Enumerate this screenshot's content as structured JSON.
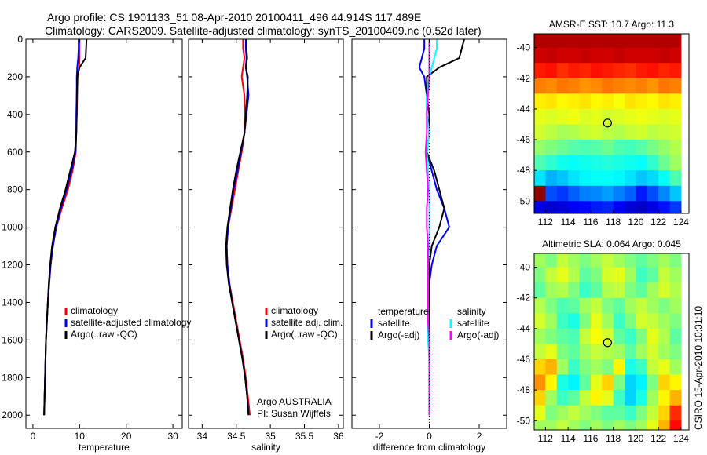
{
  "title_line1": "Argo profile: CS 1901133_51 08-Apr-2010 20100411_496 44.914S 117.489E",
  "title_line2": "Climatology: CARS2009. Satellite-adjusted climatology: synTS_20100409.nc (0.52d later)",
  "side_label": "CSIRO 15-Apr-2010 10:31:10",
  "chart_data": [
    {
      "type": "line",
      "id": "temp",
      "xlabel": "temperature",
      "xlim": [
        -1.5,
        32
      ],
      "ylim": [
        0,
        2070
      ],
      "yreversed": true,
      "xticks": [
        0,
        10,
        20,
        30
      ],
      "yticks": [
        0,
        200,
        400,
        600,
        800,
        1000,
        1200,
        1400,
        1600,
        1800,
        2000
      ],
      "depth": [
        0,
        50,
        100,
        150,
        200,
        300,
        400,
        500,
        600,
        700,
        800,
        900,
        1000,
        1100,
        1200,
        1300,
        1400,
        1500,
        1600,
        1700,
        1800,
        1900,
        2000
      ],
      "series": [
        {
          "name": "climatology",
          "color": "#ff0000",
          "values": [
            10,
            10,
            10,
            9.9,
            9.6,
            9.5,
            9.4,
            9.3,
            9.2,
            8.5,
            7.5,
            6.2,
            5.0,
            4.3,
            3.8,
            3.5,
            3.2,
            3.0,
            2.8,
            2.7,
            2.6,
            2.5,
            2.4
          ]
        },
        {
          "name": "satellite-adjusted climatology",
          "color": "#0000ff",
          "values": [
            9.8,
            9.8,
            9.7,
            9.5,
            9.4,
            9.4,
            9.3,
            9.3,
            9.1,
            8.3,
            7.2,
            6.0,
            5.0,
            4.3,
            3.8,
            3.5,
            3.2,
            3.0,
            2.8,
            2.7,
            2.6,
            2.5,
            2.4
          ]
        },
        {
          "name": "Argo(..raw -QC)",
          "color": "#000000",
          "values": [
            11.5,
            11.4,
            11.3,
            10.0,
            9.5,
            9.4,
            9.4,
            9.3,
            9.0,
            8.0,
            7.0,
            5.8,
            4.8,
            4.1,
            3.7,
            3.4,
            3.2,
            3.0,
            2.8,
            2.7,
            2.6,
            2.5,
            2.4
          ]
        }
      ],
      "legend": [
        "climatology",
        "satellite-adjusted climatology",
        "Argo(..raw -QC)"
      ]
    },
    {
      "type": "line",
      "id": "sal",
      "xlabel": "salinity",
      "xlim": [
        33.8,
        36.07
      ],
      "ylim": [
        0,
        2070
      ],
      "yreversed": true,
      "xticks": [
        34,
        34.5,
        35,
        35.5,
        36
      ],
      "depth": [
        0,
        50,
        100,
        150,
        200,
        300,
        400,
        500,
        600,
        700,
        800,
        900,
        1000,
        1100,
        1200,
        1300,
        1400,
        1500,
        1600,
        1700,
        1800,
        1900,
        2000
      ],
      "series": [
        {
          "name": "climatology",
          "color": "#ff0000",
          "values": [
            34.6,
            34.6,
            34.62,
            34.6,
            34.58,
            34.62,
            34.63,
            34.62,
            34.58,
            34.53,
            34.48,
            34.43,
            34.38,
            34.36,
            34.37,
            34.4,
            34.45,
            34.5,
            34.55,
            34.6,
            34.64,
            34.67,
            34.7
          ]
        },
        {
          "name": "satellite adj. clim.",
          "color": "#0000ff",
          "values": [
            34.64,
            34.64,
            34.65,
            34.64,
            34.66,
            34.68,
            34.65,
            34.62,
            34.57,
            34.52,
            34.46,
            34.42,
            34.38,
            34.36,
            34.37,
            34.4,
            34.44,
            34.49,
            34.54,
            34.59,
            34.63,
            34.66,
            34.68
          ]
        },
        {
          "name": "Argo(..raw -QC)",
          "color": "#000000",
          "values": [
            34.65,
            34.65,
            34.66,
            34.64,
            34.67,
            34.66,
            34.64,
            34.62,
            34.56,
            34.5,
            34.45,
            34.41,
            34.37,
            34.35,
            34.36,
            34.39,
            34.44,
            34.49,
            34.54,
            34.59,
            34.63,
            34.66,
            34.68
          ]
        }
      ],
      "legend": [
        "climatology",
        "satellite adj. clim.",
        "Argo(..raw -QC)"
      ],
      "annotation": [
        "Argo AUSTRALIA",
        "PI: Susan Wijffels"
      ]
    },
    {
      "type": "line",
      "id": "diff",
      "xlabel": "difference from climatology",
      "xlim": [
        -3.1,
        3.1
      ],
      "ylim": [
        0,
        2070
      ],
      "yreversed": true,
      "xticks": [
        -2,
        0,
        2
      ],
      "depth": [
        0,
        50,
        100,
        150,
        200,
        300,
        400,
        500,
        600,
        700,
        800,
        900,
        1000,
        1100,
        1200,
        1300,
        1400,
        1500,
        1600,
        1700,
        1800,
        1900,
        2000
      ],
      "series": [
        {
          "name": "temperature satellite",
          "color": "#0000ff",
          "values": [
            -0.2,
            -0.2,
            -0.3,
            -0.4,
            -0.2,
            -0.1,
            -0.1,
            0.0,
            -0.1,
            0.1,
            0.3,
            0.6,
            0.8,
            0.3,
            0.1,
            0.0,
            0.0,
            0.0,
            0.0,
            0.0,
            0.0,
            0.0,
            0.0
          ]
        },
        {
          "name": "temperature Argo(-adj)",
          "color": "#000000",
          "values": [
            1.4,
            1.3,
            1.2,
            0.4,
            -0.1,
            -0.1,
            0.0,
            0.0,
            -0.1,
            0.2,
            0.4,
            0.6,
            0.4,
            0.1,
            0.0,
            0.0,
            0.0,
            0.0,
            0.0,
            0.0,
            0.0,
            0.0,
            0.0
          ]
        },
        {
          "name": "salinity satellite",
          "color": "#00ffff",
          "values": [
            0.3,
            0.3,
            0.2,
            0.1,
            0.0,
            -0.1,
            -0.1,
            0.0,
            -0.1,
            -0.05,
            0.0,
            0.0,
            0.0,
            0.0,
            -0.05,
            -0.05,
            -0.05,
            -0.05,
            -0.05,
            0.0,
            0.0,
            0.0,
            0.0
          ]
        },
        {
          "name": "salinity Argo(-adj)",
          "color": "#ff00ff",
          "values": [
            0.0,
            0.0,
            0.0,
            0.0,
            0.0,
            -0.05,
            -0.1,
            -0.1,
            -0.15,
            -0.1,
            -0.05,
            -0.1,
            -0.1,
            -0.05,
            -0.05,
            -0.05,
            -0.05,
            -0.05,
            0.0,
            0.0,
            0.0,
            0.0,
            0.0
          ]
        }
      ],
      "legend_headers": [
        "temperature",
        "salinity"
      ],
      "legend": [
        "satellite",
        "Argo(-adj)",
        "satellite",
        "Argo(-adj)"
      ]
    },
    {
      "type": "heatmap",
      "id": "sst",
      "title": "AMSR-E SST: 10.7  Argo: 11.3",
      "xlim": [
        111,
        124.7
      ],
      "ylim": [
        -50.8,
        -39.1
      ],
      "xticks": [
        112,
        114,
        116,
        118,
        120,
        122,
        124
      ],
      "yticks": [
        -40,
        -42,
        -44,
        -46,
        -48,
        -50
      ],
      "clim": [
        6,
        16
      ],
      "marker": [
        117.489,
        -44.914
      ],
      "lat": [
        -39.5,
        -40.5,
        -41.5,
        -42.5,
        -43.5,
        -44.5,
        -45.5,
        -46.5,
        -47.5,
        -48.5,
        -49.5,
        -50.5
      ],
      "lon": [
        111.5,
        112.5,
        113.5,
        114.5,
        115.5,
        116.5,
        117.5,
        118.5,
        119.5,
        120.5,
        121.5,
        122.5,
        123.5
      ],
      "values": [
        [
          15.5,
          15.5,
          15.5,
          15.5,
          15.5,
          15.5,
          15.5,
          15.5,
          15.5,
          15.5,
          15.5,
          15.5,
          15.5
        ],
        [
          15.2,
          15.3,
          15.2,
          15.2,
          15.3,
          15.2,
          15.2,
          15.3,
          15.2,
          15.2,
          15.2,
          15.3,
          15.2
        ],
        [
          14.5,
          14.6,
          14.3,
          14.5,
          14.4,
          14.6,
          14.5,
          14.4,
          14.3,
          14.5,
          14.6,
          14.4,
          14.5
        ],
        [
          13.5,
          13.4,
          13.6,
          13.5,
          13.3,
          13.4,
          13.6,
          13.5,
          13.4,
          13.5,
          13.3,
          13.6,
          13.5
        ],
        [
          12.4,
          12.5,
          12.3,
          12.4,
          12.5,
          12.3,
          12.4,
          12.2,
          12.5,
          12.4,
          12.3,
          12.5,
          12.4
        ],
        [
          12.0,
          11.9,
          12.0,
          12.1,
          11.9,
          12.0,
          11.8,
          11.9,
          12.0,
          12.1,
          12.0,
          11.9,
          12.0
        ],
        [
          11.8,
          11.6,
          11.4,
          11.5,
          11.7,
          11.8,
          11.6,
          11.5,
          11.7,
          11.8,
          11.6,
          11.7,
          11.8
        ],
        [
          11.2,
          11.0,
          10.8,
          10.6,
          10.5,
          10.6,
          10.8,
          10.5,
          10.4,
          10.6,
          10.9,
          11.2,
          11.5
        ],
        [
          10.5,
          10.2,
          9.9,
          9.8,
          9.9,
          10.0,
          10.1,
          10.0,
          9.9,
          9.8,
          10.2,
          10.8,
          11.3
        ],
        [
          9.5,
          9.0,
          9.2,
          9.5,
          9.7,
          9.8,
          9.8,
          9.7,
          9.5,
          9.2,
          9.4,
          9.8,
          10.5
        ],
        [
          15.8,
          8.0,
          7.8,
          8.2,
          8.5,
          8.6,
          8.8,
          8.5,
          8.2,
          7.5,
          8.0,
          8.6,
          9.2
        ],
        [
          7.0,
          6.8,
          6.9,
          7.2,
          7.3,
          7.5,
          7.6,
          7.2,
          6.9,
          6.7,
          7.0,
          7.4,
          7.8
        ]
      ]
    },
    {
      "type": "heatmap",
      "id": "sla",
      "title": "Altimetric SLA: 0.064  Argo: 0.045",
      "xlim": [
        111,
        124.7
      ],
      "ylim": [
        -50.6,
        -39.1
      ],
      "xticks": [
        112,
        114,
        116,
        118,
        120,
        122,
        124
      ],
      "yticks": [
        -40,
        -42,
        -44,
        -46,
        -48,
        -50
      ],
      "clim": [
        -0.3,
        0.3
      ],
      "marker": [
        117.489,
        -44.914
      ],
      "lat": [
        -39.5,
        -40.5,
        -41.5,
        -42.5,
        -43.5,
        -44.5,
        -45.5,
        -46.5,
        -47.5,
        -48.5,
        -49.5,
        -50.5
      ],
      "lon": [
        111.5,
        112.5,
        113.5,
        114.5,
        115.5,
        116.5,
        117.5,
        118.5,
        119.5,
        120.5,
        121.5,
        122.5,
        123.5
      ],
      "values": [
        [
          0.02,
          0.0,
          0.04,
          0.02,
          0.0,
          0.02,
          0.04,
          0.02,
          0.0,
          -0.02,
          0.0,
          0.02,
          0.0
        ],
        [
          0.0,
          0.04,
          0.06,
          0.03,
          -0.02,
          0.0,
          0.05,
          0.06,
          0.02,
          -0.04,
          -0.02,
          0.04,
          0.02
        ],
        [
          -0.02,
          0.02,
          0.03,
          0.0,
          -0.04,
          -0.02,
          0.03,
          0.04,
          0.0,
          -0.02,
          0.02,
          0.05,
          0.03
        ],
        [
          0.03,
          0.0,
          -0.03,
          -0.02,
          0.02,
          0.04,
          0.0,
          -0.02,
          0.02,
          0.04,
          0.02,
          0.0,
          0.02
        ],
        [
          0.05,
          0.02,
          -0.04,
          -0.06,
          0.0,
          0.06,
          0.02,
          -0.04,
          0.0,
          0.05,
          0.04,
          0.02,
          0.0
        ],
        [
          0.02,
          0.0,
          -0.02,
          -0.03,
          0.04,
          0.07,
          0.05,
          -0.02,
          -0.04,
          0.0,
          0.06,
          0.03,
          -0.02
        ],
        [
          0.04,
          0.06,
          0.0,
          -0.02,
          0.02,
          0.04,
          0.03,
          0.02,
          -0.02,
          0.02,
          0.05,
          0.02,
          0.0
        ],
        [
          0.1,
          0.12,
          0.02,
          -0.04,
          0.0,
          0.02,
          0.0,
          0.08,
          -0.06,
          -0.04,
          0.04,
          0.06,
          0.02
        ],
        [
          0.14,
          0.08,
          -0.06,
          -0.08,
          -0.02,
          0.06,
          0.1,
          0.0,
          -0.1,
          -0.08,
          0.0,
          0.1,
          0.08
        ],
        [
          0.1,
          0.02,
          -0.04,
          -0.02,
          0.04,
          0.08,
          0.06,
          -0.04,
          -0.1,
          -0.06,
          0.02,
          0.08,
          0.12
        ],
        [
          0.06,
          0.0,
          0.02,
          0.04,
          0.02,
          0.0,
          -0.02,
          -0.02,
          -0.04,
          0.0,
          0.04,
          0.1,
          0.2
        ],
        [
          0.02,
          0.02,
          0.04,
          0.02,
          0.0,
          0.02,
          0.0,
          0.02,
          0.0,
          0.02,
          0.06,
          0.12,
          0.22
        ]
      ]
    }
  ]
}
